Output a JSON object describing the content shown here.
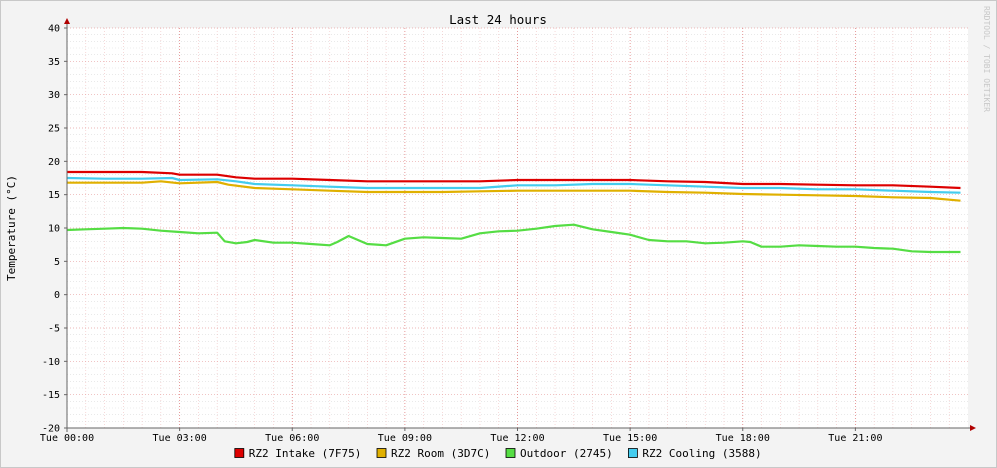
{
  "chart_data": {
    "type": "line",
    "title": "Last 24 hours",
    "ylabel": "Temperature (°C)",
    "xlabel": "",
    "watermark": "RRDTOOL / TOBI OETIKER",
    "ylim": [
      -20,
      40
    ],
    "xlim": [
      0,
      24
    ],
    "y_ticks": [
      40,
      35,
      30,
      25,
      20,
      15,
      10,
      5,
      0,
      -5,
      -10,
      -15,
      -20
    ],
    "y_tick_labels": [
      "40",
      "35",
      "30",
      "25",
      "20",
      "15",
      "10",
      "5",
      "0",
      "-5",
      "-10",
      "-15",
      "-20"
    ],
    "x_ticks": [
      0,
      3,
      6,
      9,
      12,
      15,
      18,
      21
    ],
    "x_tick_labels": [
      "Tue 00:00",
      "Tue 03:00",
      "Tue 06:00",
      "Tue 09:00",
      "Tue 12:00",
      "Tue 15:00",
      "Tue 18:00",
      "Tue 21:00"
    ],
    "grid": true,
    "legend_position": "bottom",
    "series": [
      {
        "name": "RZ2 Intake (7F75)",
        "color": "#dd0000",
        "x": [
          0,
          1,
          2,
          2.8,
          3,
          4,
          4.5,
          5,
          6,
          7,
          8,
          9,
          10,
          11,
          12,
          13,
          14,
          15,
          16,
          17,
          18,
          19,
          20,
          21,
          22,
          23,
          23.8
        ],
        "values": [
          18.4,
          18.4,
          18.4,
          18.2,
          18.0,
          18.0,
          17.6,
          17.4,
          17.4,
          17.2,
          17.0,
          17.0,
          17.0,
          17.0,
          17.2,
          17.2,
          17.2,
          17.2,
          17.0,
          16.9,
          16.6,
          16.6,
          16.5,
          16.4,
          16.4,
          16.2,
          16.0
        ]
      },
      {
        "name": "RZ2 Room (3D7C)",
        "color": "#e0b000",
        "x": [
          0,
          1,
          2,
          2.5,
          3,
          4,
          4.3,
          5,
          6,
          7,
          8,
          9,
          10,
          11,
          12,
          13,
          14,
          15,
          16,
          17,
          18,
          19,
          20,
          21,
          22,
          23,
          23.8
        ],
        "values": [
          16.8,
          16.8,
          16.8,
          17.0,
          16.7,
          16.9,
          16.5,
          16.0,
          15.8,
          15.6,
          15.4,
          15.4,
          15.4,
          15.5,
          15.6,
          15.6,
          15.6,
          15.6,
          15.4,
          15.3,
          15.1,
          15.0,
          14.9,
          14.8,
          14.6,
          14.5,
          14.1
        ]
      },
      {
        "name": "Outdoor (2745)",
        "color": "#55dd44",
        "x": [
          0,
          0.5,
          1,
          1.5,
          2,
          2.5,
          3,
          3.5,
          4,
          4.2,
          4.5,
          4.8,
          5,
          5.5,
          6,
          6.5,
          7,
          7.2,
          7.5,
          8,
          8.5,
          9,
          9.5,
          10,
          10.5,
          11,
          11.5,
          12,
          12.5,
          13,
          13.5,
          14,
          14.5,
          15,
          15.5,
          16,
          16.5,
          17,
          17.5,
          18,
          18.2,
          18.5,
          19,
          19.5,
          20,
          20.5,
          21,
          21.5,
          22,
          22.5,
          23,
          23.5,
          23.8
        ],
        "values": [
          9.7,
          9.8,
          9.9,
          10.0,
          9.9,
          9.6,
          9.4,
          9.2,
          9.3,
          8.0,
          7.7,
          7.9,
          8.2,
          7.8,
          7.8,
          7.6,
          7.4,
          7.9,
          8.8,
          7.6,
          7.4,
          8.4,
          8.6,
          8.5,
          8.4,
          9.2,
          9.5,
          9.6,
          9.9,
          10.3,
          10.5,
          9.8,
          9.4,
          9.0,
          8.2,
          8.0,
          8.0,
          7.7,
          7.8,
          8.0,
          7.9,
          7.2,
          7.2,
          7.4,
          7.3,
          7.2,
          7.2,
          7.0,
          6.9,
          6.5,
          6.4,
          6.4,
          6.4
        ]
      },
      {
        "name": "RZ2 Cooling (3588)",
        "color": "#44ccee",
        "x": [
          0,
          1,
          2,
          2.8,
          3,
          4,
          4.5,
          5,
          6,
          7,
          8,
          9,
          10,
          11,
          12,
          13,
          14,
          15,
          16,
          17,
          18,
          19,
          20,
          21,
          22,
          23,
          23.8
        ],
        "values": [
          17.5,
          17.4,
          17.4,
          17.5,
          17.2,
          17.3,
          17.0,
          16.6,
          16.4,
          16.2,
          16.0,
          16.0,
          16.0,
          16.0,
          16.4,
          16.4,
          16.6,
          16.6,
          16.4,
          16.2,
          16.0,
          16.0,
          15.8,
          15.8,
          15.6,
          15.4,
          15.3
        ]
      }
    ]
  }
}
